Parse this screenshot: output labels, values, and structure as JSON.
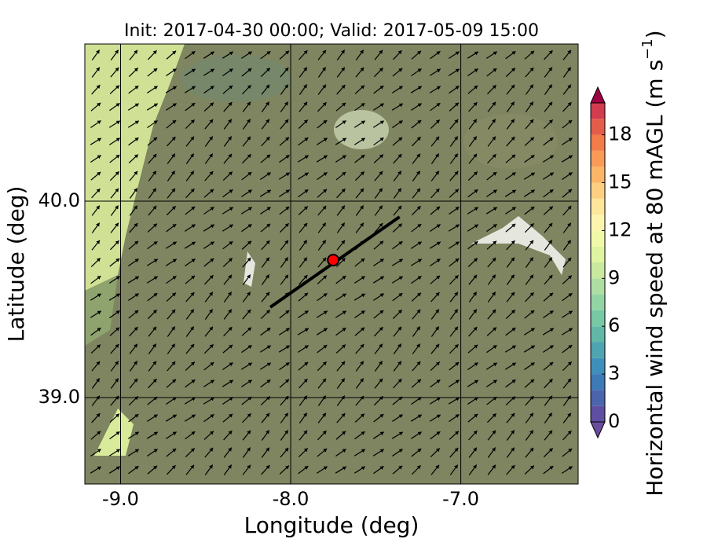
{
  "chart_data": {
    "type": "map",
    "title": "Init: 2017-04-30 00:00; Valid: 2017-05-09 15:00",
    "x_label": "Longitude (deg)",
    "y_label": "Latitude (deg)",
    "xlim": [
      -9.21,
      -6.31
    ],
    "ylim": [
      38.56,
      40.8
    ],
    "xticks": [
      {
        "value": -9,
        "label": "-9.0"
      },
      {
        "value": -8,
        "label": "-8.0"
      },
      {
        "value": -7,
        "label": "-7.0"
      }
    ],
    "yticks": [
      {
        "value": 39,
        "label": "39.0"
      },
      {
        "value": 40,
        "label": "40.0"
      }
    ],
    "grid": true,
    "point": {
      "lon": -7.75,
      "lat": 39.7,
      "color": "#ff0000"
    },
    "line": {
      "lon": [
        -8.12,
        -7.36
      ],
      "lat": [
        39.46,
        39.92
      ],
      "color": "#000000"
    },
    "colorbar": {
      "label": "Horizontal wind speed at 80 mAGL (m s",
      "label_sup": "−1",
      "label_end": ")",
      "lim": [
        0,
        20
      ],
      "ticks": [
        0,
        3,
        6,
        9,
        12,
        15,
        18
      ],
      "colors": [
        "#5e4fa2",
        "#4a65ad",
        "#3d7ab7",
        "#3f8fbb",
        "#4ea4b0",
        "#61b8a7",
        "#77c8a4",
        "#93d4a4",
        "#aedea2",
        "#c8e99e",
        "#e0f3a0",
        "#f1f9a9",
        "#fdf5ae",
        "#fee69b",
        "#fdd081",
        "#fdb567",
        "#f99a57",
        "#f47b4a",
        "#e45d4b",
        "#d33c4e"
      ],
      "under_color": "#6a4c9c",
      "over_color": "#9e0142"
    }
  }
}
